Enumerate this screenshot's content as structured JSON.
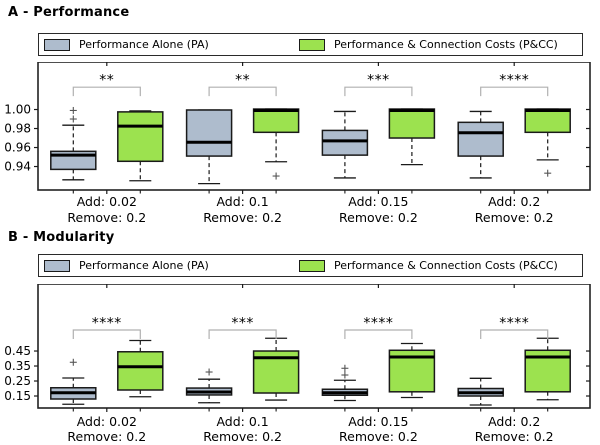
{
  "colors": {
    "pa": "#aebccd",
    "cc": "#9ce24f",
    "edge": "#1a1a1a",
    "median": "#000000",
    "flier": "#555555",
    "bracket": "#b0b0b0",
    "star": "#2b2b2b"
  },
  "chart_data": [
    {
      "type": "boxplot",
      "panel": "A",
      "title": "A - Performance",
      "legend": [
        "Performance Alone (PA)",
        "Performance & Connection Costs (P&CC)"
      ],
      "legend_position": "top",
      "categories": [
        [
          "Add: 0.02",
          "Remove: 0.2"
        ],
        [
          "Add: 0.1",
          "Remove: 0.2"
        ],
        [
          "Add: 0.15",
          "Remove: 0.2"
        ],
        [
          "Add: 0.2",
          "Remove: 0.2"
        ]
      ],
      "ylim": [
        0.9153,
        1.05
      ],
      "yticks": [
        {
          "v": 1.0,
          "label": "1.00"
        },
        {
          "v": 0.98,
          "label": "0.98"
        },
        {
          "v": 0.96,
          "label": "0.96"
        },
        {
          "v": 0.94,
          "label": "0.94"
        }
      ],
      "significance": [
        "**",
        "**",
        "***",
        "****"
      ],
      "sig_bar": 1.0235,
      "series": [
        {
          "name": "Performance Alone (PA)",
          "color_key": "pa",
          "boxes": [
            {
              "whislo": 0.926,
              "q1": 0.937,
              "med": 0.952,
              "q3": 0.956,
              "whishi": 0.9835,
              "fliers": [
                0.99,
                0.999
              ]
            },
            {
              "whislo": 0.922,
              "q1": 0.951,
              "med": 0.9655,
              "q3": 0.9995,
              "whishi": 0.9995,
              "fliers": []
            },
            {
              "whislo": 0.928,
              "q1": 0.952,
              "med": 0.967,
              "q3": 0.978,
              "whishi": 0.998,
              "fliers": []
            },
            {
              "whislo": 0.928,
              "q1": 0.951,
              "med": 0.9755,
              "q3": 0.9865,
              "whishi": 0.998,
              "fliers": []
            }
          ]
        },
        {
          "name": "Performance & Connection Costs (P&CC)",
          "color_key": "cc",
          "boxes": [
            {
              "whislo": 0.925,
              "q1": 0.9455,
              "med": 0.9825,
              "q3": 0.9975,
              "whishi": 0.9985,
              "fliers": []
            },
            {
              "whislo": 0.945,
              "q1": 0.976,
              "med": 0.999,
              "q3": 1.0005,
              "whishi": 1.0005,
              "fliers": [
                0.93
              ]
            },
            {
              "whislo": 0.942,
              "q1": 0.97,
              "med": 0.999,
              "q3": 1.0005,
              "whishi": 1.0005,
              "fliers": []
            },
            {
              "whislo": 0.947,
              "q1": 0.976,
              "med": 0.999,
              "q3": 1.0005,
              "whishi": 1.0005,
              "fliers": [
                0.933
              ]
            }
          ]
        }
      ]
    },
    {
      "type": "boxplot",
      "panel": "B",
      "title": "B - Modularity",
      "legend": [
        "Performance Alone (PA)",
        "Performance & Connection Costs (P&CC)"
      ],
      "legend_position": "top",
      "categories": [
        [
          "Add: 0.02",
          "Remove: 0.2"
        ],
        [
          "Add: 0.1",
          "Remove: 0.2"
        ],
        [
          "Add: 0.15",
          "Remove: 0.2"
        ],
        [
          "Add: 0.2",
          "Remove: 0.2"
        ]
      ],
      "ylim": [
        0.07,
        0.897
      ],
      "yticks": [
        {
          "v": 0.45,
          "label": "0.45"
        },
        {
          "v": 0.35,
          "label": "0.35"
        },
        {
          "v": 0.25,
          "label": "0.25"
        },
        {
          "v": 0.15,
          "label": "0.15"
        }
      ],
      "significance": [
        "****",
        "***",
        "****",
        "****"
      ],
      "sig_bar": 0.59,
      "series": [
        {
          "name": "Performance Alone (PA)",
          "color_key": "pa",
          "boxes": [
            {
              "whislo": 0.095,
              "q1": 0.13,
              "med": 0.172,
              "q3": 0.205,
              "whishi": 0.27,
              "fliers": [
                0.375
              ]
            },
            {
              "whislo": 0.105,
              "q1": 0.157,
              "med": 0.177,
              "q3": 0.203,
              "whishi": 0.262,
              "fliers": [
                0.31
              ]
            },
            {
              "whislo": 0.12,
              "q1": 0.155,
              "med": 0.172,
              "q3": 0.195,
              "whishi": 0.255,
              "fliers": [
                0.29,
                0.335
              ]
            },
            {
              "whislo": 0.09,
              "q1": 0.15,
              "med": 0.172,
              "q3": 0.2,
              "whishi": 0.268,
              "fliers": []
            }
          ]
        },
        {
          "name": "Performance & Connection Costs (P&CC)",
          "color_key": "cc",
          "boxes": [
            {
              "whislo": 0.145,
              "q1": 0.19,
              "med": 0.345,
              "q3": 0.445,
              "whishi": 0.52,
              "fliers": []
            },
            {
              "whislo": 0.123,
              "q1": 0.17,
              "med": 0.405,
              "q3": 0.45,
              "whishi": 0.535,
              "fliers": []
            },
            {
              "whislo": 0.14,
              "q1": 0.178,
              "med": 0.41,
              "q3": 0.455,
              "whishi": 0.5,
              "fliers": []
            },
            {
              "whislo": 0.125,
              "q1": 0.178,
              "med": 0.41,
              "q3": 0.455,
              "whishi": 0.535,
              "fliers": []
            }
          ]
        }
      ]
    }
  ]
}
